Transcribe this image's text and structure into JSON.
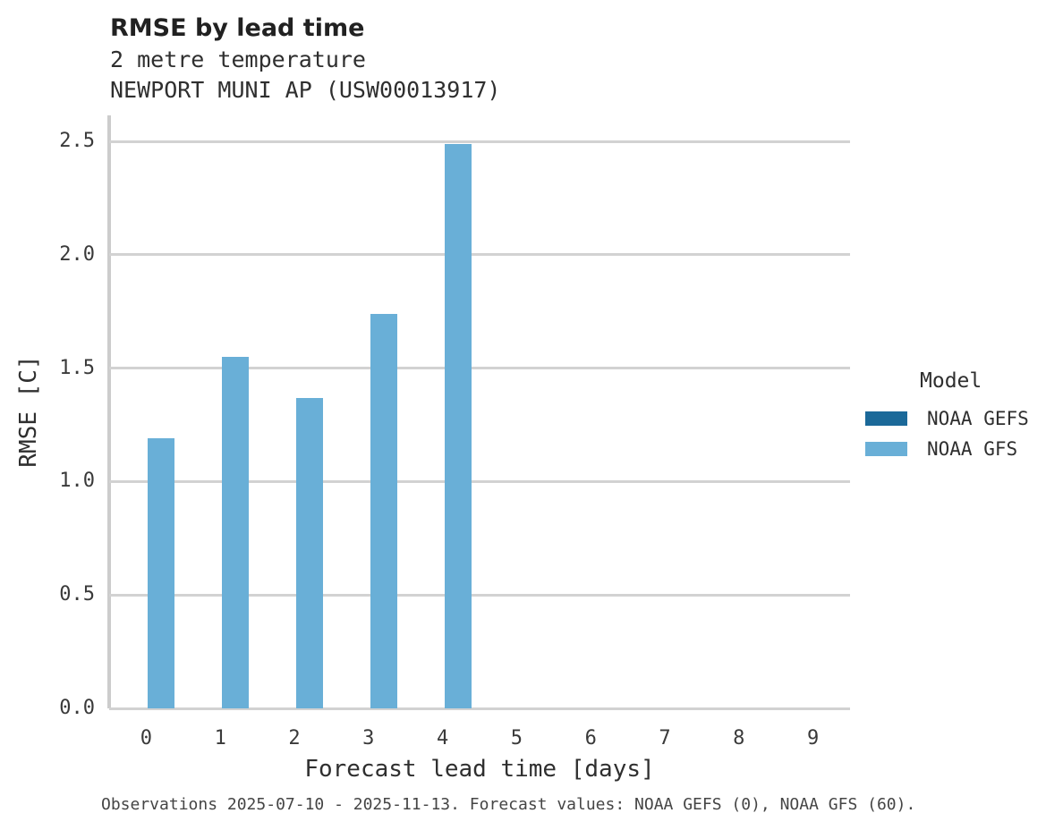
{
  "header": {
    "title": "RMSE by lead time",
    "subtitle1": "2 metre temperature",
    "subtitle2": "NEWPORT MUNI AP (USW00013917)"
  },
  "legend": {
    "title": "Model",
    "items": [
      {
        "label": "NOAA GEFS",
        "color": "#1b6999"
      },
      {
        "label": "NOAA GFS",
        "color": "#69afd7"
      }
    ]
  },
  "caption": {
    "text": "Observations 2025-07-10 - 2025-11-13. Forecast values: NOAA GEFS (0), NOAA GFS (60)."
  },
  "chart_data": {
    "type": "bar",
    "title": "RMSE by lead time",
    "subtitle": [
      "2 metre temperature",
      "NEWPORT MUNI AP (USW00013917)"
    ],
    "xlabel": "Forecast lead time [days]",
    "ylabel": "RMSE [C]",
    "categories": [
      "0",
      "1",
      "2",
      "3",
      "4",
      "5",
      "6",
      "7",
      "8",
      "9"
    ],
    "series": [
      {
        "name": "NOAA GEFS",
        "color": "#1b6999",
        "values": [
          null,
          null,
          null,
          null,
          null,
          null,
          null,
          null,
          null,
          null
        ]
      },
      {
        "name": "NOAA GFS",
        "color": "#69afd7",
        "values": [
          1.19,
          1.55,
          1.37,
          1.74,
          2.49,
          null,
          null,
          null,
          null,
          null
        ]
      }
    ],
    "ylim": [
      0,
      2.615
    ],
    "yticks": [
      0,
      0.5,
      1.0,
      1.5,
      2.0,
      2.5
    ],
    "ytick_labels": [
      "0.0",
      "0.5",
      "1.0",
      "1.5",
      "2.0",
      "2.5"
    ],
    "grid": true,
    "gridline_color": "#d2d2d2",
    "legend_position": "right",
    "legend_title": "Model"
  }
}
